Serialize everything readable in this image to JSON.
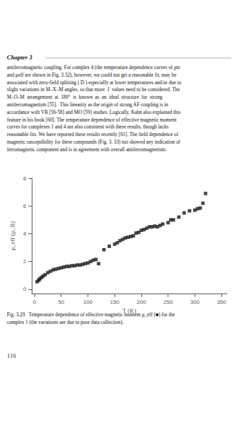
{
  "chart_data": {
    "type": "scatter",
    "xlabel": "T (K)",
    "ylabel": "μ_eff (μ_B)",
    "xlim": [
      -5,
      360
    ],
    "ylim": [
      -0.3,
      8
    ],
    "xticks": [
      0,
      50,
      100,
      150,
      200,
      250,
      300,
      350
    ],
    "yticks": [
      0,
      2,
      4,
      6,
      8
    ],
    "grid": false,
    "marker": "square",
    "color": "#1a1a1a",
    "x": [
      5,
      8,
      10,
      13,
      16,
      20,
      25,
      30,
      35,
      40,
      45,
      50,
      55,
      60,
      65,
      70,
      75,
      80,
      85,
      90,
      95,
      100,
      105,
      110,
      115,
      120,
      130,
      140,
      150,
      155,
      160,
      165,
      170,
      175,
      180,
      185,
      190,
      195,
      200,
      205,
      210,
      215,
      220,
      225,
      230,
      235,
      240,
      250,
      255,
      260,
      270,
      280,
      290,
      300,
      305,
      310,
      315,
      320
    ],
    "values": [
      0.55,
      0.65,
      0.75,
      0.85,
      0.95,
      1.05,
      1.2,
      1.3,
      1.4,
      1.45,
      1.5,
      1.55,
      1.6,
      1.65,
      1.65,
      1.7,
      1.7,
      1.75,
      1.75,
      1.8,
      1.85,
      1.9,
      2.0,
      2.1,
      2.15,
      1.85,
      2.85,
      3.1,
      3.25,
      3.35,
      3.5,
      3.6,
      3.7,
      3.75,
      3.8,
      3.85,
      4.05,
      4.1,
      4.25,
      4.3,
      4.4,
      4.5,
      4.5,
      4.55,
      4.5,
      4.6,
      4.7,
      4.8,
      5.0,
      5.0,
      5.2,
      5.5,
      5.65,
      5.7,
      5.8,
      5.85,
      6.2,
      6.9
    ],
    "annotations": [
      "Chapter 3",
      "antiferromagnetic coupling. For complex 4 (the temperature dependence curves of χm",
      "and μeff are shown in Fig. 3.32), however, we could not get a reasonable fit, may be",
      "associated with zero-field splitting ( D ) especially at lower temperatures and/or due to",
      "slight variations in M–X–M angles, so that more  J  values need to be considered. The",
      "M–O–M  arrangement  at  180°  is  known  as  an  ideal  structure  for  strong",
      "antiferromagnetism [55].  This linearity as the origin of strong AF coupling is in",
      "accordance with VB [56-58] and MO [59] studies. Logically, Kahn also explained this",
      "feature in his book [60]. The temperature dependence of effective magnetic moment",
      "curves for complexes 1 and 4 are also consistent with these results, though lacks",
      "reasonable fits. We have reported these results recently [61]. The field dependence of",
      "magnetic susceptibility for these compounds (Fig. 3. 33) not showed any indication of",
      "ferromagnetic component and is in agreement with overall antiferromagnetism.",
      "Fig. 3.29.  Temperature dependence of effective magnetic moment μ_eff (■) for the",
      "complex 1 (the variations are due to poor data collection).",
      "116"
    ]
  }
}
